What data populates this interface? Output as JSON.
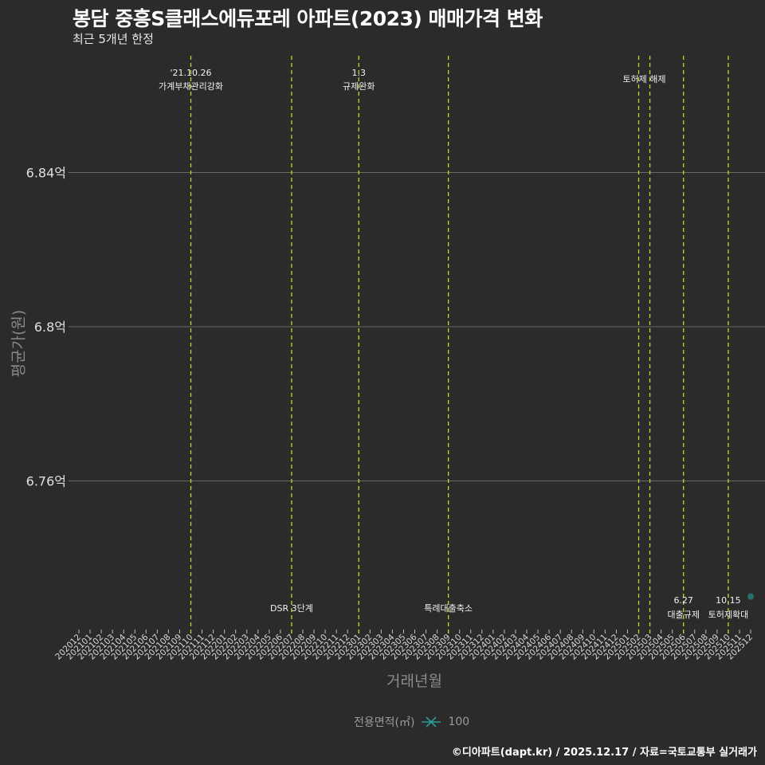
{
  "header": {
    "title": "봉담 중흥S클래스에듀포레 아파트(2023) 매매가격 변화",
    "subtitle": "최근 5개년 한정"
  },
  "axes": {
    "ylabel": "평균가(원)",
    "xlabel": "거래년월"
  },
  "legend": {
    "title": "전용면적(㎡)",
    "items": [
      {
        "label": "100",
        "color": "#2a8a8a"
      }
    ]
  },
  "footer": {
    "credit": "©디아파트(dapt.kr) / 2025.12.17 / 자료=국토교통부 실거래가"
  },
  "colors": {
    "background": "#2b2b2b",
    "grid": "#6a6a6a",
    "event_line": "#c8d42a",
    "point": "#2a6e6e",
    "text": "#e0e0e0"
  },
  "chart_data": {
    "type": "scatter",
    "title": "봉담 중흥S클래스에듀포레 아파트(2023) 매매가격 변화",
    "subtitle": "최근 5개년 한정",
    "xlabel": "거래년월",
    "ylabel": "평균가(원)",
    "categories": [
      "202012",
      "202101",
      "202102",
      "202103",
      "202104",
      "202105",
      "202106",
      "202107",
      "202108",
      "202109",
      "202110",
      "202111",
      "202112",
      "202201",
      "202202",
      "202203",
      "202204",
      "202205",
      "202206",
      "202207",
      "202208",
      "202209",
      "202210",
      "202211",
      "202212",
      "202301",
      "202302",
      "202303",
      "202304",
      "202305",
      "202306",
      "202307",
      "202308",
      "202309",
      "202310",
      "202311",
      "202312",
      "202401",
      "202402",
      "202403",
      "202404",
      "202405",
      "202406",
      "202407",
      "202408",
      "202409",
      "202410",
      "202411",
      "202412",
      "202501",
      "202502",
      "202503",
      "202504",
      "202505",
      "202506",
      "202507",
      "202508",
      "202509",
      "202510",
      "202511",
      "202512"
    ],
    "yticks": [
      {
        "value": 6.84,
        "label": "6.84억"
      },
      {
        "value": 6.8,
        "label": "6.8억"
      },
      {
        "value": 6.76,
        "label": "6.76억"
      }
    ],
    "ylim": [
      6.727,
      6.88
    ],
    "grid": true,
    "legend_position": "bottom",
    "series": [
      {
        "name": "100",
        "points": [
          {
            "x": "202512",
            "y": 6.73
          }
        ]
      }
    ],
    "events": [
      {
        "x": "202110",
        "label_top": "'21.10.26",
        "label_bottom": "가계부채관리강화",
        "position": "top"
      },
      {
        "x": "202207",
        "label_top": "",
        "label_bottom": "DSR 3단계",
        "position": "bottom"
      },
      {
        "x": "202301",
        "label_top": "1.3",
        "label_bottom": "규제완화",
        "position": "top"
      },
      {
        "x": "202309",
        "label_top": "",
        "label_bottom": "특례대출축소",
        "position": "bottom"
      },
      {
        "x": "202502",
        "label_top": "",
        "label_bottom": "토허제 해제",
        "position": "top"
      },
      {
        "x": "202503",
        "label_top": "",
        "label_bottom": "",
        "position": "none"
      },
      {
        "x": "202506",
        "label_top": "6.27",
        "label_bottom": "대출규제",
        "position": "bottom"
      },
      {
        "x": "202510",
        "label_top": "10.15",
        "label_bottom": "토허제확대",
        "position": "bottom"
      }
    ]
  }
}
